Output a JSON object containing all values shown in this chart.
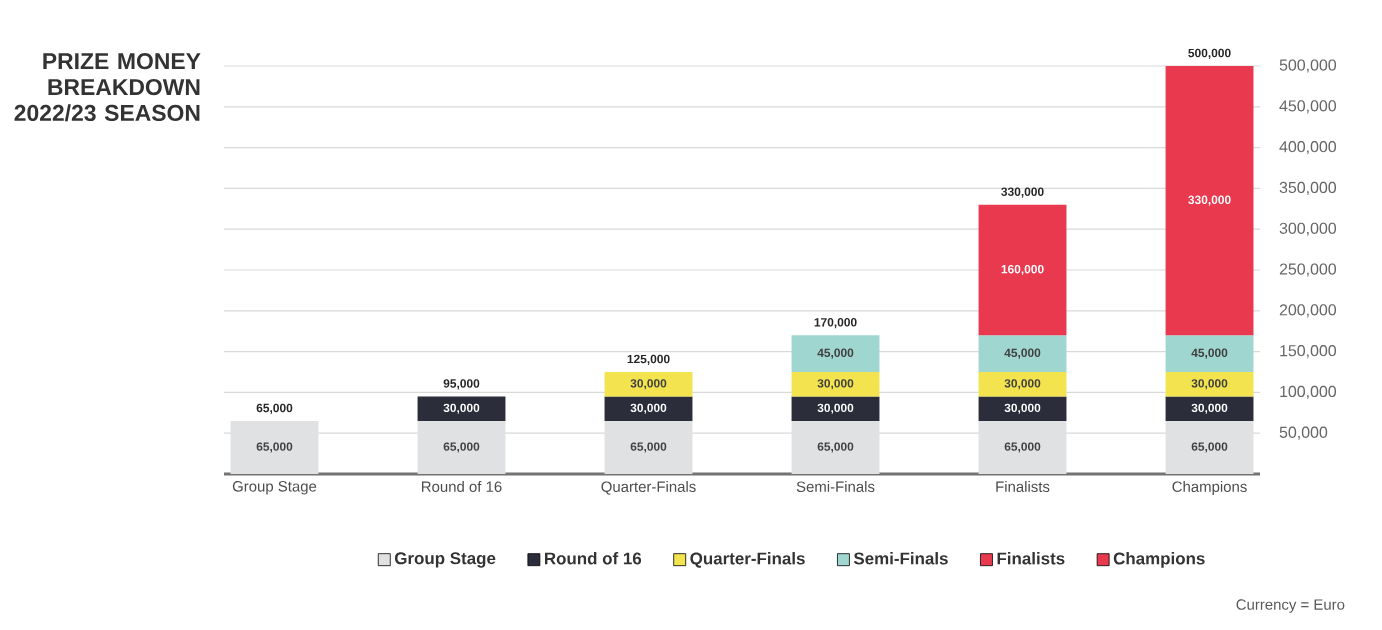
{
  "chart_data": {
    "type": "bar",
    "stacked": true,
    "title": "PRIZE MONEY BREAKDOWN 2022/23 SEASON",
    "categories": [
      "Group Stage",
      "Round of 16",
      "Quarter-Finals",
      "Semi-Finals",
      "Finalists",
      "Champions"
    ],
    "series": [
      {
        "name": "Group Stage",
        "color": "#dfe1e3",
        "values": [
          65000,
          65000,
          65000,
          65000,
          65000,
          65000
        ],
        "value_labels": [
          "65,000",
          "65,000",
          "65,000",
          "65,000",
          "65,000",
          "65,000"
        ]
      },
      {
        "name": "Round of 16",
        "color": "#2b2d3a",
        "values": [
          null,
          30000,
          30000,
          30000,
          30000,
          30000
        ],
        "value_labels": [
          null,
          "30,000",
          "30,000",
          "30,000",
          "30,000",
          "30,000"
        ]
      },
      {
        "name": "Quarter-Finals",
        "color": "#f2e34f",
        "values": [
          null,
          null,
          30000,
          30000,
          30000,
          30000
        ],
        "value_labels": [
          null,
          null,
          "30,000",
          "30,000",
          "30,000",
          "30,000"
        ]
      },
      {
        "name": "Semi-Finals",
        "color": "#9fd6cf",
        "values": [
          null,
          null,
          null,
          45000,
          45000,
          45000
        ],
        "value_labels": [
          null,
          null,
          null,
          "45,000",
          "45,000",
          "45,000"
        ]
      },
      {
        "name": "Finalists",
        "color": "#e8394f",
        "values": [
          null,
          null,
          null,
          null,
          160000,
          null
        ],
        "value_labels": [
          null,
          null,
          null,
          null,
          "160,000",
          null
        ]
      },
      {
        "name": "Champions",
        "color": "#e8394f",
        "values": [
          null,
          null,
          null,
          null,
          null,
          330000
        ],
        "value_labels": [
          null,
          null,
          null,
          null,
          null,
          "330,000"
        ]
      }
    ],
    "totals": [
      "65,000",
      "95,000",
      "125,000",
      "170,000",
      "330,000",
      "500,000"
    ],
    "ylim": [
      0,
      500000
    ],
    "yticks": [
      {
        "value": 50000,
        "label": "50,000"
      },
      {
        "value": 100000,
        "label": "100,000"
      },
      {
        "value": 150000,
        "label": "150,000"
      },
      {
        "value": 200000,
        "label": "200,000"
      },
      {
        "value": 250000,
        "label": "250,000"
      },
      {
        "value": 300000,
        "label": "300,000"
      },
      {
        "value": 350000,
        "label": "350,000"
      },
      {
        "value": 400000,
        "label": "400,000"
      },
      {
        "value": 450000,
        "label": "450,000"
      },
      {
        "value": 500000,
        "label": "500,000"
      }
    ],
    "grid": "y",
    "legend": "bottom",
    "annotations": [
      "Currency = Euro"
    ]
  }
}
